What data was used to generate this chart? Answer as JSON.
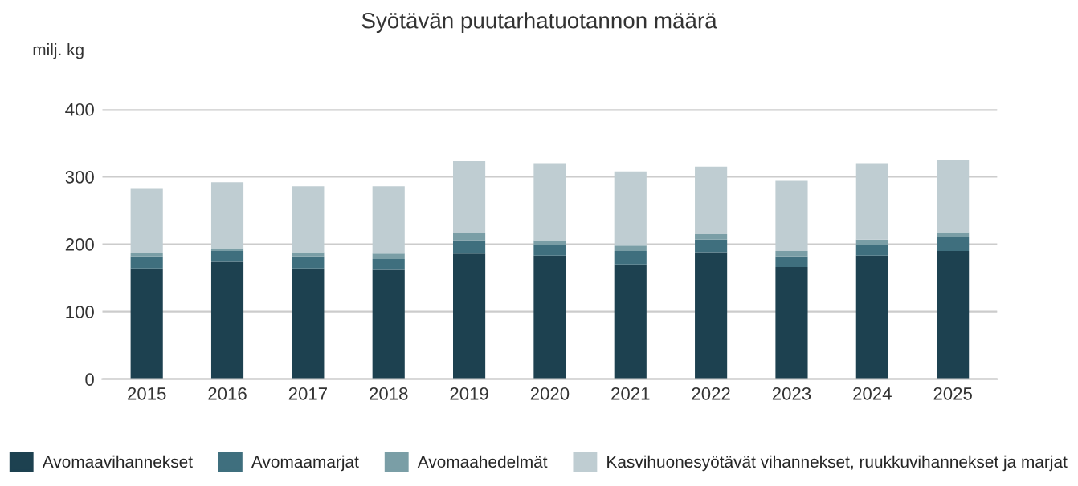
{
  "chart_data": {
    "type": "bar",
    "title": "Syötävän puutarhatuotannon määrä",
    "ylabel": "milj. kg",
    "stacked": true,
    "grid": "y",
    "legend": "bottom",
    "categories": [
      "2015",
      "2016",
      "2017",
      "2018",
      "2019",
      "2020",
      "2021",
      "2022",
      "2023",
      "2024",
      "2025"
    ],
    "series": [
      {
        "name": "Avomaavihannekset",
        "color": "#1d4150",
        "values": [
          164,
          174,
          164,
          162,
          186,
          183,
          170,
          188,
          166,
          183,
          190
        ]
      },
      {
        "name": "Avomaamarjat",
        "color": "#3f6f7e",
        "values": [
          18,
          16,
          18,
          16,
          20,
          16,
          20,
          19,
          16,
          16,
          20
        ]
      },
      {
        "name": "Avomaahedelmät",
        "color": "#7a9ea6",
        "values": [
          5,
          4,
          6,
          8,
          11,
          7,
          8,
          8,
          8,
          8,
          8
        ]
      },
      {
        "name": "Kasvihuonesyötävät vihannekset, ruukkuvihannekset ja marjat",
        "color": "#bfcdd2",
        "values": [
          95,
          98,
          98,
          100,
          106,
          114,
          110,
          100,
          104,
          113,
          107
        ]
      }
    ],
    "ylim": [
      0,
      400
    ],
    "yticks": [
      0,
      100,
      200,
      300,
      400
    ]
  }
}
